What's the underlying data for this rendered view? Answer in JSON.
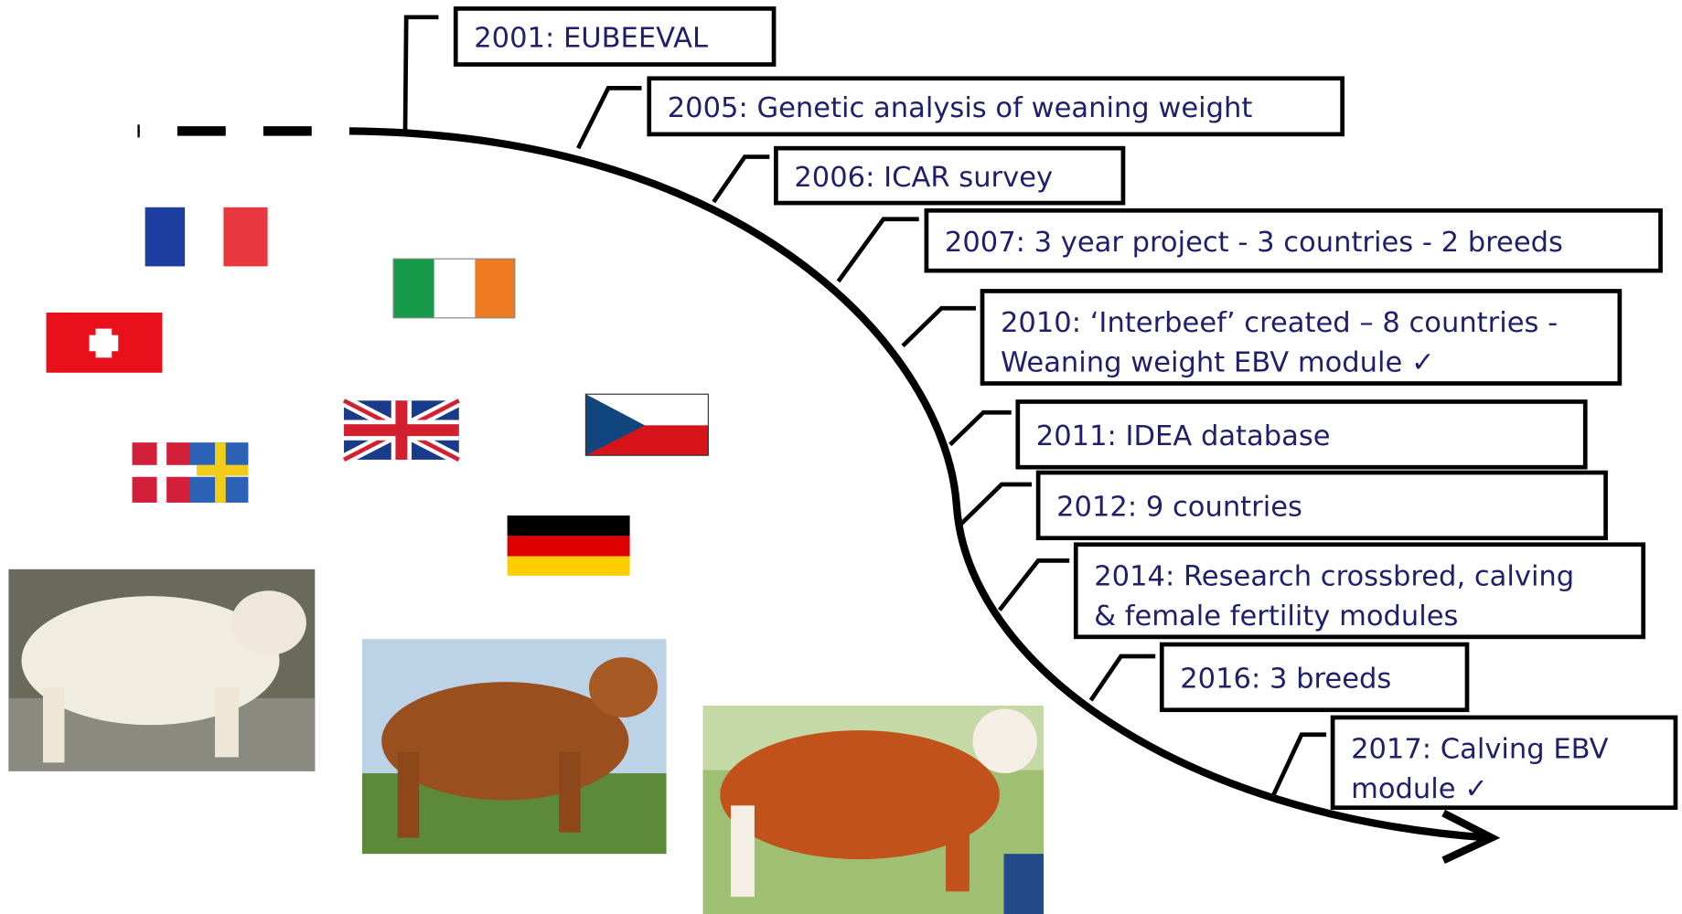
{
  "timeline": [
    {
      "lines": [
        "2001: EUBEEVAL"
      ]
    },
    {
      "lines": [
        "2005: Genetic analysis of weaning weight"
      ]
    },
    {
      "lines": [
        "2006: ICAR survey"
      ]
    },
    {
      "lines": [
        "2007: 3 year project - 3 countries - 2 breeds"
      ]
    },
    {
      "lines": [
        "2010: ‘Interbeef’ created – 8 countries -",
        "Weaning weight EBV module ✓"
      ]
    },
    {
      "lines": [
        "2011: IDEA database"
      ]
    },
    {
      "lines": [
        "2012: 9 countries"
      ]
    },
    {
      "lines": [
        "2014: Research crossbred, calving",
        "& female fertility modules"
      ]
    },
    {
      "lines": [
        "2016: 3 breeds"
      ]
    },
    {
      "lines": [
        "2017: Calving EBV",
        "module ✓"
      ]
    }
  ]
}
